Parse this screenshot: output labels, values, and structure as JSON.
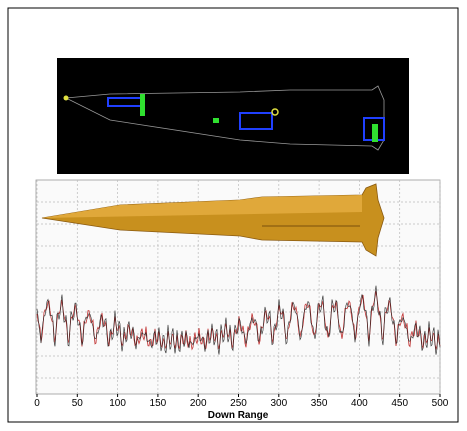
{
  "figure": {
    "x_axis": {
      "label": "Down Range",
      "lim": [
        0,
        500
      ],
      "ticks": [
        0,
        50,
        100,
        150,
        200,
        250,
        300,
        350,
        400,
        450,
        500
      ]
    }
  }
}
